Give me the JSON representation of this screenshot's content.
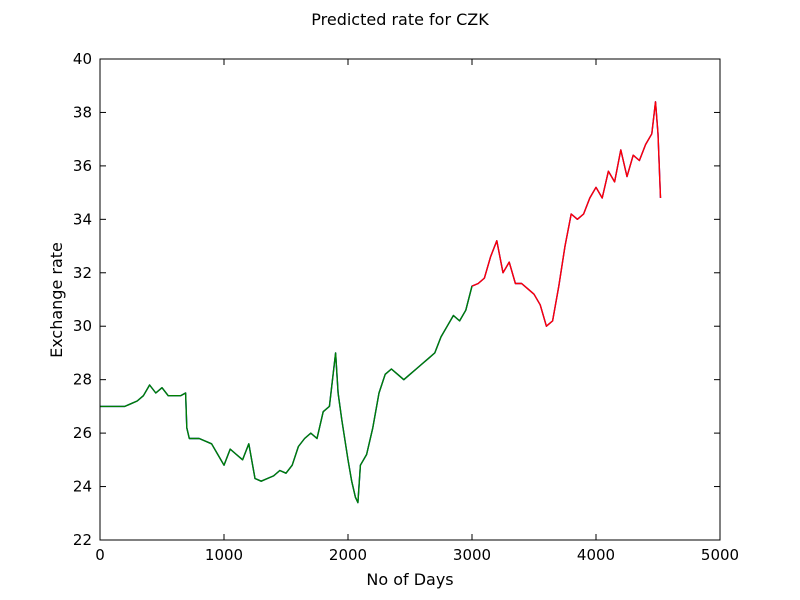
{
  "chart_data": {
    "type": "line",
    "title": "Predicted rate for CZK",
    "xlabel": "No of Days",
    "ylabel": "Exchange rate",
    "xlim": [
      0,
      5000
    ],
    "ylim": [
      22,
      40
    ],
    "xticks": [
      0,
      1000,
      2000,
      3000,
      4000,
      5000
    ],
    "yticks": [
      22,
      24,
      26,
      28,
      30,
      32,
      34,
      36,
      38,
      40
    ],
    "grid": false,
    "legend": "none",
    "series": [
      {
        "color": "#0000ff",
        "x": [
          0,
          100,
          200,
          300,
          350,
          400,
          450,
          500,
          550,
          600,
          650,
          690,
          700,
          720,
          800,
          900,
          950,
          1000,
          1050,
          1100,
          1150,
          1200,
          1250,
          1300,
          1350,
          1400,
          1450,
          1500,
          1550,
          1600,
          1650,
          1700,
          1750,
          1800,
          1850,
          1900,
          1920,
          1950,
          2000,
          2030,
          2060,
          2080,
          2100,
          2150,
          2200,
          2250,
          2300,
          2350,
          2400,
          2450,
          2500,
          2550,
          2600,
          2650,
          2700,
          2750,
          2800,
          2850,
          2900,
          2950,
          3000,
          3050,
          3100,
          3150,
          3200,
          3250,
          3300,
          3350,
          3400,
          3450,
          3500,
          3550,
          3600,
          3650,
          3700,
          3750,
          3800,
          3850,
          3900,
          3950,
          4000,
          4050,
          4100,
          4150,
          4200,
          4250,
          4300,
          4350,
          4400,
          4450,
          4480,
          4500,
          4520
        ],
        "y": [
          27.0,
          27.0,
          27.0,
          27.2,
          27.4,
          27.8,
          27.5,
          27.7,
          27.4,
          27.4,
          27.4,
          27.5,
          26.2,
          25.8,
          25.8,
          25.6,
          25.2,
          24.8,
          25.4,
          25.2,
          25.0,
          25.6,
          24.3,
          24.2,
          24.3,
          24.4,
          24.6,
          24.5,
          24.8,
          25.5,
          25.8,
          26.0,
          25.8,
          26.8,
          27.0,
          29.0,
          27.5,
          26.5,
          25.0,
          24.2,
          23.6,
          23.4,
          24.8,
          25.2,
          26.2,
          27.5,
          28.2,
          28.4,
          28.2,
          28.0,
          28.2,
          28.4,
          28.6,
          28.8,
          29.0,
          29.6,
          30.0,
          30.4,
          30.2,
          30.6,
          31.5,
          31.6,
          31.8,
          32.6,
          33.2,
          32.0,
          32.4,
          31.6,
          31.6,
          31.4,
          31.2,
          30.8,
          30.0,
          30.2,
          31.5,
          33.0,
          34.2,
          34.0,
          34.2,
          34.8,
          35.2,
          34.8,
          35.8,
          35.4,
          36.6,
          35.6,
          36.4,
          36.2,
          36.8,
          37.2,
          38.4,
          37.2,
          34.8
        ]
      },
      {
        "color": "#008000",
        "x": [
          0,
          100,
          200,
          300,
          350,
          400,
          450,
          500,
          550,
          600,
          650,
          690,
          700,
          720,
          800,
          900,
          950,
          1000,
          1050,
          1100,
          1150,
          1200,
          1250,
          1300,
          1350,
          1400,
          1450,
          1500,
          1550,
          1600,
          1650,
          1700,
          1750,
          1800,
          1850,
          1900,
          1920,
          1950,
          2000,
          2030,
          2060,
          2080,
          2100,
          2150,
          2200,
          2250,
          2300,
          2350,
          2400,
          2450,
          2500,
          2550,
          2600,
          2650,
          2700,
          2750,
          2800,
          2850,
          2900,
          2950,
          3000
        ],
        "y": [
          27.0,
          27.0,
          27.0,
          27.2,
          27.4,
          27.8,
          27.5,
          27.7,
          27.4,
          27.4,
          27.4,
          27.5,
          26.2,
          25.8,
          25.8,
          25.6,
          25.2,
          24.8,
          25.4,
          25.2,
          25.0,
          25.6,
          24.3,
          24.2,
          24.3,
          24.4,
          24.6,
          24.5,
          24.8,
          25.5,
          25.8,
          26.0,
          25.8,
          26.8,
          27.0,
          29.0,
          27.5,
          26.5,
          25.0,
          24.2,
          23.6,
          23.4,
          24.8,
          25.2,
          26.2,
          27.5,
          28.2,
          28.4,
          28.2,
          28.0,
          28.2,
          28.4,
          28.6,
          28.8,
          29.0,
          29.6,
          30.0,
          30.4,
          30.2,
          30.6,
          31.5
        ]
      },
      {
        "color": "#ff0000",
        "x": [
          3000,
          3050,
          3100,
          3150,
          3200,
          3250,
          3300,
          3350,
          3400,
          3450,
          3500,
          3550,
          3600,
          3650,
          3700,
          3750,
          3800,
          3850,
          3900,
          3950,
          4000,
          4050,
          4100,
          4150,
          4200,
          4250,
          4300,
          4350,
          4400,
          4450,
          4480,
          4500,
          4520
        ],
        "y": [
          31.5,
          31.6,
          31.8,
          32.6,
          33.2,
          32.0,
          32.4,
          31.6,
          31.6,
          31.4,
          31.2,
          30.8,
          30.0,
          30.2,
          31.5,
          33.0,
          34.2,
          34.0,
          34.2,
          34.8,
          35.2,
          34.8,
          35.8,
          35.4,
          36.6,
          35.6,
          36.4,
          36.2,
          36.8,
          37.2,
          38.4,
          37.2,
          34.8
        ]
      }
    ]
  }
}
